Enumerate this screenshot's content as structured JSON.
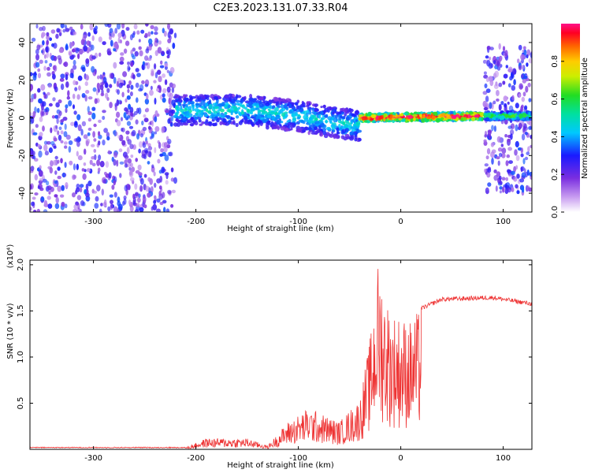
{
  "title": "C2E3.2023.131.07.33.R04",
  "chart_data": [
    {
      "type": "heatmap",
      "xlabel": "Height of straight line (km)",
      "ylabel": "Frequency (Hz)",
      "xlim": [
        -362,
        128
      ],
      "ylim": [
        -50,
        50
      ],
      "xticks": [
        -300,
        -200,
        -100,
        0,
        100
      ],
      "xtick_labels": [
        "-300",
        "-200",
        "-100",
        "0",
        "100"
      ],
      "yticks": [
        -40,
        -20,
        0,
        20,
        40
      ],
      "ytick_labels": [
        "-40",
        "-20",
        "0",
        "20",
        "40"
      ],
      "colorbar": {
        "label": "Normalized spectral amplitude",
        "range": [
          0,
          1
        ],
        "ticks": [
          0.0,
          0.2,
          0.4,
          0.6,
          0.8
        ],
        "tick_labels": [
          "0.0",
          "0.2",
          "0.4",
          "0.6",
          "0.8"
        ]
      },
      "regions": [
        {
          "x": [
            -362,
            -220
          ],
          "y": [
            -50,
            50
          ],
          "level": 0.25
        },
        {
          "x": [
            -220,
            -40
          ],
          "ridge": [
            [
              -220,
              4
            ],
            [
              -150,
              4
            ],
            [
              -100,
              1
            ],
            [
              -60,
              -3
            ],
            [
              -40,
              -4
            ]
          ],
          "spread": 8,
          "level": 0.3
        },
        {
          "x": [
            -40,
            80
          ],
          "ridge": [
            [
              -40,
              0
            ],
            [
              80,
              1
            ]
          ],
          "spread": 2,
          "level": 0.65
        },
        {
          "x": [
            82,
            128
          ],
          "y": [
            -40,
            38
          ],
          "level": 0.25
        },
        {
          "x": [
            82,
            128
          ],
          "ridge": [
            [
              82,
              1
            ],
            [
              128,
              1
            ]
          ],
          "spread": 2,
          "level": 0.4
        }
      ]
    },
    {
      "type": "line",
      "xlabel": "Height of straight line (km)",
      "ylabel": "SNR (10 * v/v)",
      "y_multiplier": "(x10⁴)",
      "xlim": [
        -362,
        128
      ],
      "ylim": [
        0,
        2.05
      ],
      "xticks": [
        -300,
        -200,
        -100,
        0,
        100
      ],
      "xtick_labels": [
        "-300",
        "-200",
        "-100",
        "0",
        "100"
      ],
      "yticks": [
        0.5,
        1.0,
        1.5,
        2.0
      ],
      "ytick_labels": [
        "0.5",
        "1.0",
        "1.5",
        "2.0"
      ],
      "series_color": "#ee3333",
      "envelope": [
        {
          "x": -362,
          "y": 0.02
        },
        {
          "x": -210,
          "y": 0.02
        },
        {
          "x": -190,
          "y": 0.12
        },
        {
          "x": -150,
          "y": 0.12
        },
        {
          "x": -130,
          "y": 0.04
        },
        {
          "x": -110,
          "y": 0.3
        },
        {
          "x": -90,
          "y": 0.45
        },
        {
          "x": -60,
          "y": 0.3
        },
        {
          "x": -40,
          "y": 0.55
        },
        {
          "x": -30,
          "y": 1.2
        },
        {
          "x": -22,
          "y": 2.05
        },
        {
          "x": -10,
          "y": 1.5
        },
        {
          "x": 0,
          "y": 1.45
        },
        {
          "x": 10,
          "y": 1.4
        },
        {
          "x": 20,
          "y": 1.55
        },
        {
          "x": 40,
          "y": 1.65
        },
        {
          "x": 90,
          "y": 1.67
        },
        {
          "x": 128,
          "y": 1.6
        }
      ]
    }
  ]
}
